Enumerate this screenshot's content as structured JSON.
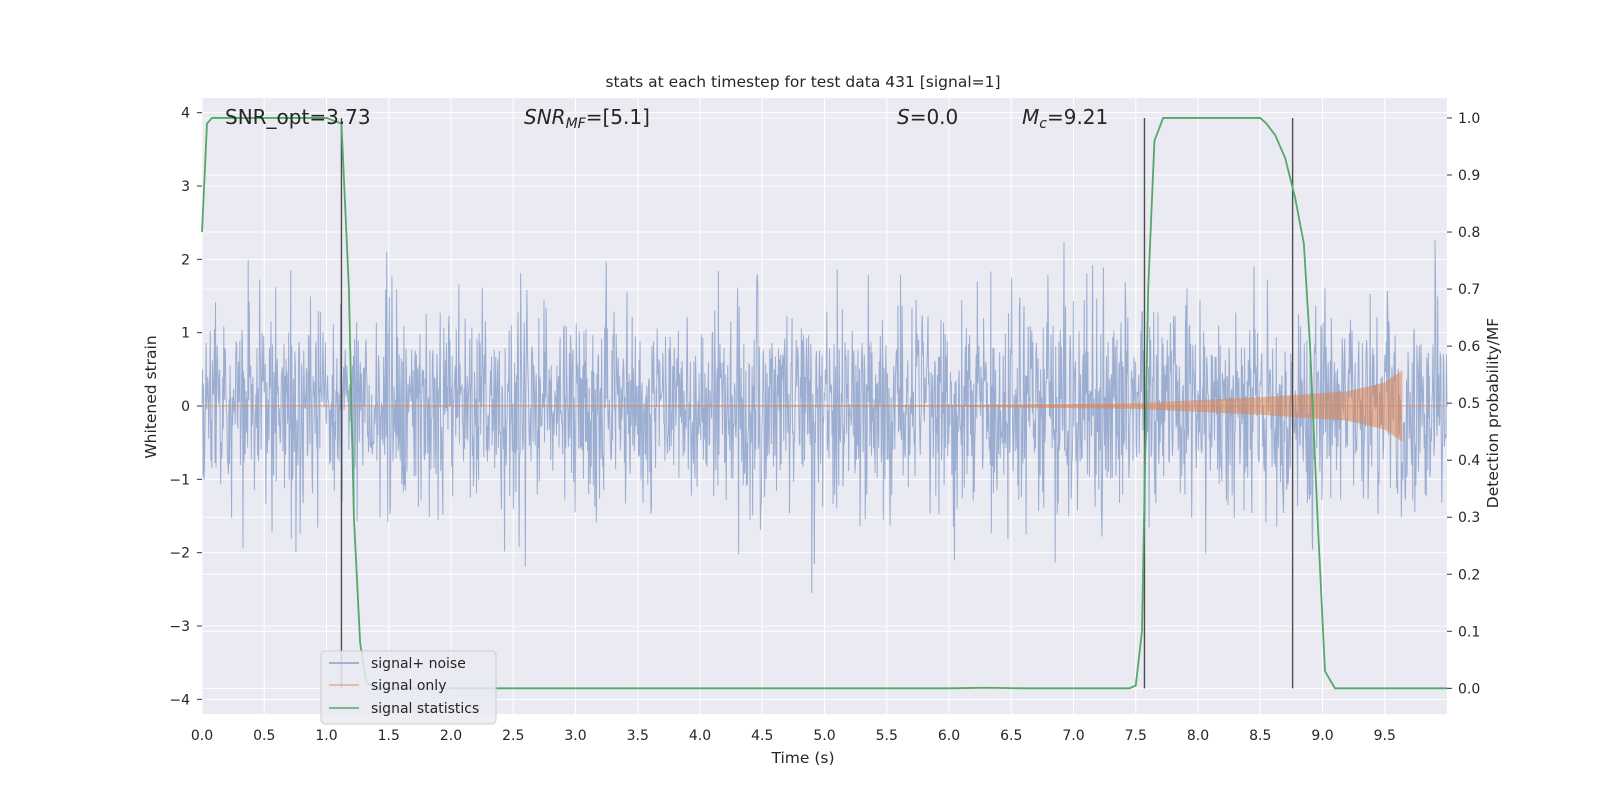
{
  "chart_data": {
    "type": "line",
    "title": "stats at each timestep for test data 431 [signal=1]",
    "xlabel": "Time (s)",
    "ylabel": "Whitened strain",
    "ylabel_right": "Detection probability/MF",
    "xlim": [
      0,
      10
    ],
    "ylim": [
      -4.2,
      4.2
    ],
    "ylim_right": [
      -0.045,
      1.035
    ],
    "x_ticks": [
      "0.0",
      "0.5",
      "1.0",
      "1.5",
      "2.0",
      "2.5",
      "3.0",
      "3.5",
      "4.0",
      "4.5",
      "5.0",
      "5.5",
      "6.0",
      "6.5",
      "7.0",
      "7.5",
      "8.0",
      "8.5",
      "9.0",
      "9.5"
    ],
    "y_ticks": [
      "4",
      "3",
      "2",
      "1",
      "0",
      "−1",
      "−2",
      "−3",
      "−4"
    ],
    "y_ticks_right": [
      "1.0",
      "0.9",
      "0.8",
      "0.7",
      "0.6",
      "0.5",
      "0.4",
      "0.3",
      "0.2",
      "0.1",
      "0.0"
    ],
    "grid": true,
    "legend_position": "lower-left",
    "annotations": {
      "snr_opt": "SNR_opt=3.73",
      "snr_mf_label": "SNR",
      "snr_mf_sub": "MF",
      "snr_mf_value": "=[5.1]",
      "s_label": "S",
      "s_value": "=0.0",
      "mc_label": "M",
      "mc_sub": "c",
      "mc_value": "=9.21"
    },
    "vlines_x": [
      1.12,
      7.57,
      8.76
    ],
    "series": [
      {
        "name": "signal+ noise",
        "color": "#4c72b0",
        "description_range": [
          -4.0,
          3.8
        ]
      },
      {
        "name": "signal only",
        "color": "#dd8452",
        "envelope": {
          "x": [
            0.0,
            6.0,
            7.5,
            8.5,
            9.2,
            9.5,
            9.65
          ],
          "amp": [
            0.0,
            0.01,
            0.04,
            0.12,
            0.2,
            0.32,
            0.5
          ]
        }
      },
      {
        "name": "signal statistics",
        "color": "#55a868",
        "axis": "right",
        "x": [
          0.0,
          0.04,
          0.08,
          0.15,
          0.5,
          1.0,
          1.12,
          1.18,
          1.22,
          1.27,
          1.32,
          1.4,
          2.0,
          3.0,
          4.0,
          5.0,
          6.0,
          6.3,
          6.6,
          7.0,
          7.45,
          7.5,
          7.55,
          7.6,
          7.65,
          7.72,
          8.0,
          8.5,
          8.55,
          8.62,
          8.7,
          8.78,
          8.85,
          8.9,
          8.96,
          9.02,
          9.1,
          9.2,
          9.5,
          10.0
        ],
        "y": [
          0.8,
          0.99,
          1.0,
          1.0,
          1.0,
          1.0,
          0.99,
          0.7,
          0.3,
          0.08,
          0.01,
          0.0,
          0.0,
          0.0,
          0.0,
          0.0,
          0.0,
          0.001,
          0.0,
          0.0,
          0.0,
          0.005,
          0.1,
          0.7,
          0.96,
          1.0,
          1.0,
          1.0,
          0.99,
          0.97,
          0.93,
          0.86,
          0.78,
          0.6,
          0.3,
          0.03,
          0.0,
          0.0,
          0.0,
          0.0
        ]
      }
    ]
  }
}
